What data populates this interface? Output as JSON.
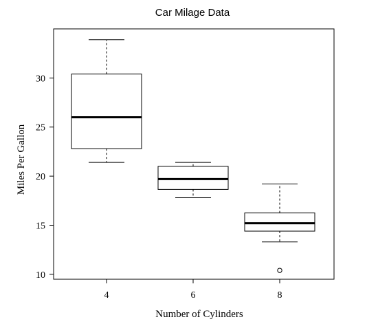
{
  "chart_data": {
    "type": "boxplot",
    "title": "Car Milage Data",
    "xlabel": "Number of Cylinders",
    "ylabel": "Miles Per Gallon",
    "ylim": [
      9.5,
      35.0
    ],
    "yticks": [
      "10",
      "15",
      "20",
      "25",
      "30"
    ],
    "categories": [
      "4",
      "6",
      "8"
    ],
    "boxes": [
      {
        "category": "4",
        "whisker_low": 21.4,
        "q1": 22.8,
        "median": 26.0,
        "q3": 30.4,
        "whisker_high": 33.9,
        "outliers": []
      },
      {
        "category": "6",
        "whisker_low": 17.8,
        "q1": 18.65,
        "median": 19.7,
        "q3": 21.0,
        "whisker_high": 21.4,
        "outliers": []
      },
      {
        "category": "8",
        "whisker_low": 13.3,
        "q1": 14.4,
        "median": 15.2,
        "q3": 16.25,
        "whisker_high": 19.2,
        "outliers": [
          10.4
        ]
      }
    ],
    "grid": false,
    "legend": "none"
  }
}
